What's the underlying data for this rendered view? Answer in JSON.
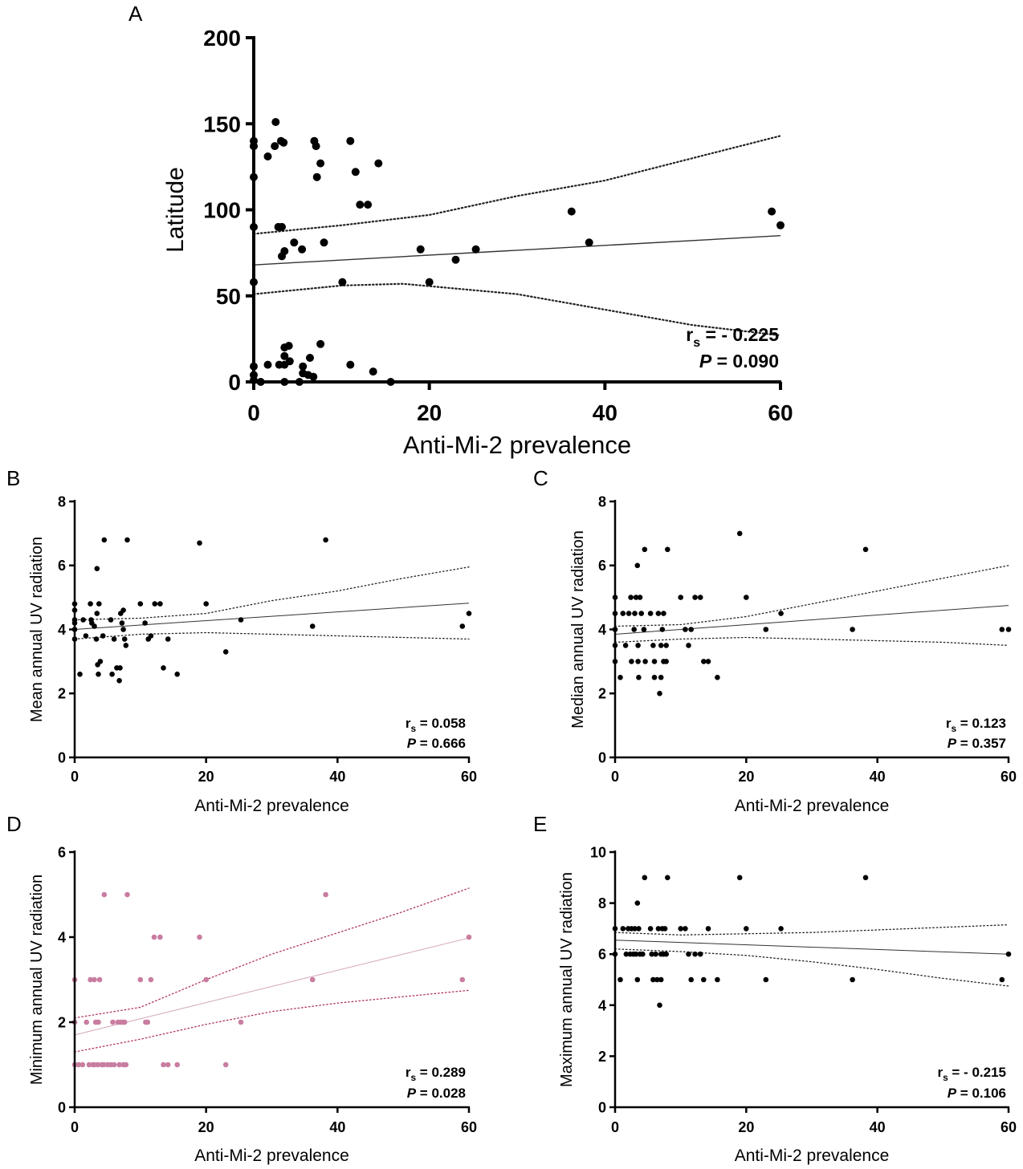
{
  "chart_data": [
    {
      "panel": "A",
      "type": "scatter",
      "xlabel": "Anti-Mi-2 prevalence",
      "ylabel": "Latitude",
      "xlim": [
        0,
        60
      ],
      "ylim": [
        0,
        200
      ],
      "xticks": [
        0,
        20,
        40,
        60
      ],
      "yticks": [
        0,
        50,
        100,
        150,
        200
      ],
      "color": "#000000",
      "points": [
        [
          0,
          137
        ],
        [
          0,
          140
        ],
        [
          0,
          137
        ],
        [
          0,
          119
        ],
        [
          0,
          90
        ],
        [
          0,
          58
        ],
        [
          0,
          9
        ],
        [
          0,
          4
        ],
        [
          0,
          1
        ],
        [
          0.8,
          0
        ],
        [
          1.6,
          131
        ],
        [
          2.4,
          137
        ],
        [
          2.5,
          151
        ],
        [
          3.1,
          140
        ],
        [
          3.4,
          139
        ],
        [
          2.8,
          90
        ],
        [
          3.2,
          90
        ],
        [
          3.2,
          73
        ],
        [
          3.5,
          76
        ],
        [
          4.6,
          81
        ],
        [
          5.5,
          77
        ],
        [
          7.6,
          127
        ],
        [
          7.1,
          137
        ],
        [
          6.9,
          140
        ],
        [
          7.2,
          119
        ],
        [
          8,
          81
        ],
        [
          10.1,
          58
        ],
        [
          11,
          140
        ],
        [
          11.6,
          122
        ],
        [
          12.1,
          103
        ],
        [
          13,
          103
        ],
        [
          14.2,
          127
        ],
        [
          19,
          77
        ],
        [
          20,
          58
        ],
        [
          23,
          71
        ],
        [
          25.3,
          77
        ],
        [
          36.2,
          99
        ],
        [
          38.2,
          81
        ],
        [
          59,
          99
        ],
        [
          60,
          91
        ],
        [
          1.6,
          10
        ],
        [
          2.9,
          10
        ],
        [
          3.5,
          10
        ],
        [
          3.5,
          15
        ],
        [
          4.1,
          12
        ],
        [
          3.5,
          20
        ],
        [
          4,
          21
        ],
        [
          3.5,
          0
        ],
        [
          5.2,
          0
        ],
        [
          5.6,
          9
        ],
        [
          5.6,
          5
        ],
        [
          6.4,
          14
        ],
        [
          6.2,
          4
        ],
        [
          6.8,
          3
        ],
        [
          7.6,
          22
        ],
        [
          11,
          10
        ],
        [
          13.6,
          6
        ],
        [
          15.6,
          0
        ]
      ],
      "fit": {
        "intercept": 68,
        "slope": 0.283
      },
      "ci_upper": [
        [
          0,
          86
        ],
        [
          10,
          91
        ],
        [
          20,
          97
        ],
        [
          30,
          108
        ],
        [
          40,
          117
        ],
        [
          50,
          130
        ],
        [
          60,
          143
        ]
      ],
      "ci_lower": [
        [
          0,
          51
        ],
        [
          10,
          56
        ],
        [
          17,
          57
        ],
        [
          30,
          51
        ],
        [
          40,
          42
        ],
        [
          50,
          33
        ],
        [
          60,
          27
        ]
      ],
      "rs_value": "= - 0.225",
      "p_value": "= 0.090"
    },
    {
      "panel": "B",
      "type": "scatter",
      "xlabel": "Anti-Mi-2 prevalence",
      "ylabel": "Mean annual UV radiation",
      "xlim": [
        0,
        60
      ],
      "ylim": [
        0,
        8
      ],
      "xticks": [
        0,
        20,
        40,
        60
      ],
      "yticks": [
        0,
        2,
        4,
        6,
        8
      ],
      "color": "#000000",
      "points": [
        [
          0,
          4.8
        ],
        [
          0,
          4.6
        ],
        [
          0,
          4.3
        ],
        [
          0,
          4.2
        ],
        [
          0,
          4
        ],
        [
          0,
          3.7
        ],
        [
          0.8,
          2.6
        ],
        [
          1.3,
          4.3
        ],
        [
          1.7,
          3.8
        ],
        [
          2.4,
          4.8
        ],
        [
          2.5,
          4.3
        ],
        [
          2.6,
          4.2
        ],
        [
          3,
          4.1
        ],
        [
          3.3,
          3.7
        ],
        [
          3.4,
          5.9
        ],
        [
          3.4,
          4.5
        ],
        [
          3.5,
          2.9
        ],
        [
          3.6,
          2.6
        ],
        [
          3.7,
          4.8
        ],
        [
          3.9,
          3
        ],
        [
          4.3,
          3.8
        ],
        [
          4.5,
          6.8
        ],
        [
          5.5,
          4.3
        ],
        [
          5.7,
          2.6
        ],
        [
          6,
          3.7
        ],
        [
          6.4,
          2.8
        ],
        [
          6.8,
          2.4
        ],
        [
          6.9,
          2.8
        ],
        [
          7,
          4.5
        ],
        [
          7.2,
          4.2
        ],
        [
          7.4,
          4.6
        ],
        [
          7.4,
          4
        ],
        [
          7.6,
          3.7
        ],
        [
          7.8,
          3.5
        ],
        [
          8,
          6.8
        ],
        [
          10,
          4.8
        ],
        [
          10.7,
          4.2
        ],
        [
          11.2,
          3.7
        ],
        [
          11.6,
          3.8
        ],
        [
          12.2,
          4.8
        ],
        [
          13,
          4.8
        ],
        [
          13.5,
          2.8
        ],
        [
          14.2,
          3.7
        ],
        [
          15.6,
          2.6
        ],
        [
          19,
          6.7
        ],
        [
          20,
          4.8
        ],
        [
          23,
          3.3
        ],
        [
          25.3,
          4.3
        ],
        [
          36.2,
          4.1
        ],
        [
          38.2,
          6.8
        ],
        [
          59,
          4.1
        ],
        [
          60,
          4.5
        ]
      ],
      "fit": {
        "intercept": 4.0,
        "slope": 0.0137
      },
      "ci_upper": [
        [
          0,
          4.3
        ],
        [
          10,
          4.35
        ],
        [
          20,
          4.5
        ],
        [
          30,
          4.9
        ],
        [
          40,
          5.2
        ],
        [
          50,
          5.6
        ],
        [
          60,
          5.95
        ]
      ],
      "ci_lower": [
        [
          0,
          3.7
        ],
        [
          10,
          3.85
        ],
        [
          20,
          3.9
        ],
        [
          30,
          3.85
        ],
        [
          40,
          3.8
        ],
        [
          50,
          3.75
        ],
        [
          60,
          3.7
        ]
      ],
      "rs_value": "= 0.058",
      "p_value": "= 0.666"
    },
    {
      "panel": "C",
      "type": "scatter",
      "xlabel": "Anti-Mi-2 prevalence",
      "ylabel": "Median annual UV radiation",
      "xlim": [
        0,
        60
      ],
      "ylim": [
        0,
        8
      ],
      "xticks": [
        0,
        20,
        40,
        60
      ],
      "yticks": [
        0,
        2,
        4,
        6,
        8
      ],
      "color": "#000000",
      "points": [
        [
          0,
          5
        ],
        [
          0,
          4.5
        ],
        [
          0,
          4
        ],
        [
          0,
          3.5
        ],
        [
          0,
          3
        ],
        [
          0.8,
          2.5
        ],
        [
          1.2,
          4.5
        ],
        [
          1.6,
          3.5
        ],
        [
          2.1,
          4.5
        ],
        [
          2.4,
          5
        ],
        [
          2.5,
          3
        ],
        [
          2.9,
          4
        ],
        [
          3,
          4.5
        ],
        [
          3.2,
          5
        ],
        [
          3.4,
          6
        ],
        [
          3.5,
          3.5
        ],
        [
          3.5,
          3
        ],
        [
          3.6,
          2.5
        ],
        [
          3.8,
          5
        ],
        [
          4,
          4.5
        ],
        [
          4.4,
          4
        ],
        [
          4.5,
          6.5
        ],
        [
          4.6,
          3
        ],
        [
          5.4,
          4.5
        ],
        [
          5.8,
          3.5
        ],
        [
          6,
          3
        ],
        [
          6,
          2.5
        ],
        [
          6.6,
          4.5
        ],
        [
          6.8,
          2
        ],
        [
          7,
          2.5
        ],
        [
          7,
          3.5
        ],
        [
          7.2,
          4
        ],
        [
          7.4,
          3
        ],
        [
          7.4,
          4.5
        ],
        [
          7.8,
          3
        ],
        [
          7.8,
          3.5
        ],
        [
          8,
          6.5
        ],
        [
          10,
          5
        ],
        [
          10.7,
          4
        ],
        [
          11.2,
          3.5
        ],
        [
          11.6,
          4
        ],
        [
          12.2,
          5
        ],
        [
          13,
          5
        ],
        [
          13.5,
          3
        ],
        [
          14.2,
          3
        ],
        [
          15.6,
          2.5
        ],
        [
          19,
          7
        ],
        [
          20,
          5
        ],
        [
          23,
          4
        ],
        [
          25.3,
          4.5
        ],
        [
          36.2,
          4
        ],
        [
          38.2,
          6.5
        ],
        [
          59,
          4
        ],
        [
          60,
          4
        ]
      ],
      "fit": {
        "intercept": 3.85,
        "slope": 0.015
      },
      "ci_upper": [
        [
          0,
          4.1
        ],
        [
          10,
          4.15
        ],
        [
          20,
          4.4
        ],
        [
          30,
          4.8
        ],
        [
          40,
          5.2
        ],
        [
          50,
          5.6
        ],
        [
          60,
          6.0
        ]
      ],
      "ci_lower": [
        [
          0,
          3.6
        ],
        [
          10,
          3.7
        ],
        [
          20,
          3.75
        ],
        [
          30,
          3.7
        ],
        [
          40,
          3.65
        ],
        [
          50,
          3.6
        ],
        [
          60,
          3.5
        ]
      ],
      "rs_value": "= 0.123",
      "p_value": "= 0.357"
    },
    {
      "panel": "D",
      "type": "scatter",
      "xlabel": "Anti-Mi-2 prevalence",
      "ylabel": "Minimum annual UV radiation",
      "xlim": [
        0,
        60
      ],
      "ylim": [
        0,
        6
      ],
      "xticks": [
        0,
        20,
        40,
        60
      ],
      "yticks": [
        0,
        2,
        4,
        6
      ],
      "color": "#c97da0",
      "points": [
        [
          0,
          3
        ],
        [
          0,
          2
        ],
        [
          0,
          1
        ],
        [
          0.6,
          1
        ],
        [
          1.2,
          1
        ],
        [
          1.8,
          2
        ],
        [
          2.2,
          1
        ],
        [
          2.4,
          3
        ],
        [
          2.8,
          1
        ],
        [
          3,
          1
        ],
        [
          3,
          3
        ],
        [
          3.2,
          2
        ],
        [
          3.5,
          1
        ],
        [
          3.6,
          2
        ],
        [
          3.8,
          3
        ],
        [
          4.1,
          1
        ],
        [
          4.4,
          1
        ],
        [
          4.5,
          5
        ],
        [
          5,
          1
        ],
        [
          5.5,
          1
        ],
        [
          5.8,
          2
        ],
        [
          6,
          1
        ],
        [
          6.6,
          2
        ],
        [
          6.8,
          1
        ],
        [
          7,
          2
        ],
        [
          7.4,
          2
        ],
        [
          7.4,
          1
        ],
        [
          7.6,
          2
        ],
        [
          7.8,
          1
        ],
        [
          8,
          5
        ],
        [
          10,
          3
        ],
        [
          10.8,
          2
        ],
        [
          11.1,
          2
        ],
        [
          11.6,
          3
        ],
        [
          12.1,
          4
        ],
        [
          13,
          4
        ],
        [
          13.5,
          1
        ],
        [
          14.2,
          1
        ],
        [
          15.6,
          1
        ],
        [
          19,
          4
        ],
        [
          20,
          3
        ],
        [
          23,
          1
        ],
        [
          25.3,
          2
        ],
        [
          36.2,
          3
        ],
        [
          38.2,
          5
        ],
        [
          59,
          3
        ],
        [
          60,
          4
        ]
      ],
      "fit": {
        "intercept": 1.7,
        "slope": 0.038
      },
      "ci_upper": [
        [
          0,
          2.1
        ],
        [
          10,
          2.35
        ],
        [
          20,
          3.0
        ],
        [
          30,
          3.6
        ],
        [
          40,
          4.1
        ],
        [
          50,
          4.6
        ],
        [
          60,
          5.15
        ]
      ],
      "ci_lower": [
        [
          0,
          1.3
        ],
        [
          10,
          1.6
        ],
        [
          20,
          1.95
        ],
        [
          30,
          2.25
        ],
        [
          40,
          2.45
        ],
        [
          50,
          2.6
        ],
        [
          60,
          2.75
        ]
      ],
      "rs_value": "= 0.289",
      "p_value": "= 0.028"
    },
    {
      "panel": "E",
      "type": "scatter",
      "xlabel": "Anti-Mi-2 prevalence",
      "ylabel": "Maximum annual UV radiation",
      "xlim": [
        0,
        60
      ],
      "ylim": [
        0,
        10
      ],
      "xticks": [
        0,
        20,
        40,
        60
      ],
      "yticks": [
        0,
        2,
        4,
        6,
        8,
        10
      ],
      "color": "#000000",
      "points": [
        [
          0,
          7
        ],
        [
          0,
          6
        ],
        [
          0.8,
          5
        ],
        [
          1.2,
          7
        ],
        [
          1.7,
          6
        ],
        [
          2,
          7
        ],
        [
          2.3,
          6
        ],
        [
          2.5,
          7
        ],
        [
          2.8,
          6
        ],
        [
          3,
          7
        ],
        [
          3.2,
          6
        ],
        [
          3.4,
          8
        ],
        [
          3.4,
          5
        ],
        [
          3.6,
          7
        ],
        [
          3.8,
          6
        ],
        [
          4.2,
          6
        ],
        [
          4.5,
          9
        ],
        [
          5.4,
          7
        ],
        [
          5.6,
          6
        ],
        [
          5.8,
          5
        ],
        [
          6.2,
          6
        ],
        [
          6.4,
          5
        ],
        [
          6.6,
          7
        ],
        [
          6.8,
          4
        ],
        [
          7,
          5
        ],
        [
          7,
          6
        ],
        [
          7.2,
          7
        ],
        [
          7.4,
          6
        ],
        [
          7.6,
          7
        ],
        [
          7.8,
          6
        ],
        [
          8,
          9
        ],
        [
          10,
          7
        ],
        [
          10.7,
          7
        ],
        [
          11.2,
          6
        ],
        [
          11.6,
          5
        ],
        [
          12.2,
          6
        ],
        [
          13,
          6
        ],
        [
          13.5,
          5
        ],
        [
          14.2,
          7
        ],
        [
          15.6,
          5
        ],
        [
          19,
          9
        ],
        [
          20,
          7
        ],
        [
          23,
          5
        ],
        [
          25.3,
          7
        ],
        [
          36.2,
          5
        ],
        [
          38.2,
          9
        ],
        [
          59,
          5
        ],
        [
          60,
          6
        ]
      ],
      "fit": {
        "intercept": 6.55,
        "slope": -0.0092
      },
      "ci_upper": [
        [
          0,
          6.85
        ],
        [
          10,
          6.75
        ],
        [
          20,
          6.8
        ],
        [
          30,
          6.85
        ],
        [
          40,
          6.95
        ],
        [
          50,
          7.05
        ],
        [
          60,
          7.15
        ]
      ],
      "ci_lower": [
        [
          0,
          6.2
        ],
        [
          10,
          6.1
        ],
        [
          20,
          5.95
        ],
        [
          30,
          5.7
        ],
        [
          40,
          5.4
        ],
        [
          50,
          5.05
        ],
        [
          60,
          4.75
        ]
      ],
      "rs_value": "= - 0.215",
      "p_value": "= 0.106"
    }
  ]
}
